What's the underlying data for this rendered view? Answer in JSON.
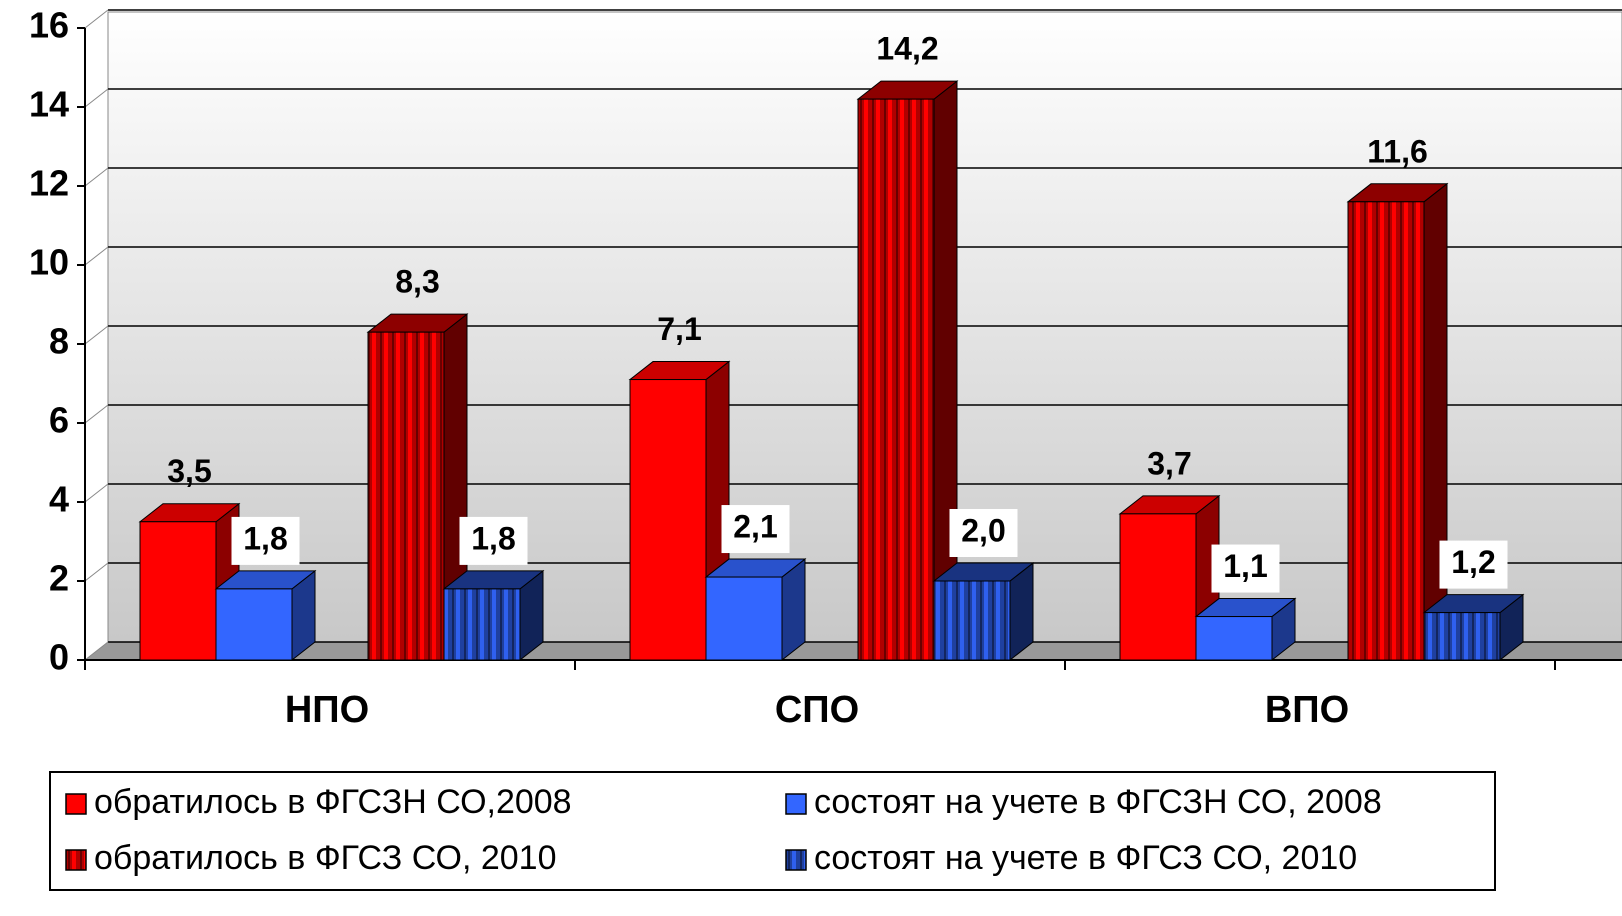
{
  "chart_data": {
    "type": "bar",
    "categories": [
      "НПО",
      "СПО",
      "ВПО"
    ],
    "series": [
      {
        "name": "обратилось в ФГСЗН СО,2008",
        "color": "#ff0000",
        "striped": false,
        "values": [
          3.5,
          7.1,
          3.7
        ],
        "value_labels": [
          "3,5",
          "7,1",
          "3,7"
        ]
      },
      {
        "name": "состоят на учете в ФГСЗН СО, 2008",
        "color": "#3366ff",
        "striped": false,
        "values": [
          1.8,
          2.1,
          1.1
        ],
        "value_labels": [
          "1,8",
          "2,1",
          "1,1"
        ]
      },
      {
        "name": "обратилось в ФГСЗ СО, 2010",
        "color": "#b00000",
        "striped": true,
        "values": [
          8.3,
          14.2,
          11.6
        ],
        "value_labels": [
          "8,3",
          "14,2",
          "11,6"
        ]
      },
      {
        "name": "состоят на учете в ФГСЗ СО, 2010",
        "color": "#1f40a0",
        "striped": true,
        "values": [
          1.8,
          2.0,
          1.2
        ],
        "value_labels": [
          "1,8",
          "2,0",
          "1,2"
        ]
      }
    ],
    "ylim": [
      0,
      16
    ],
    "yticks": [
      0,
      2,
      4,
      6,
      8,
      10,
      12,
      14,
      16
    ],
    "grid": true,
    "legend": "bottom"
  }
}
